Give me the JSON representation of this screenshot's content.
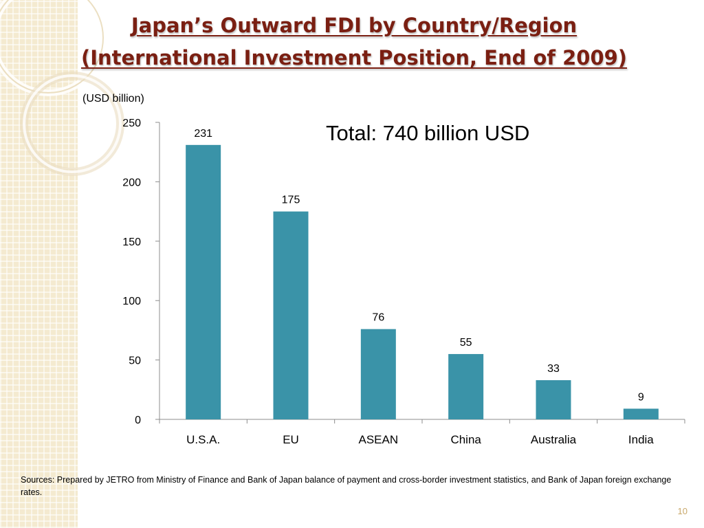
{
  "slide": {
    "title_line1": "Japan’s Outward FDI by Country/Region",
    "title_line2": "(International Investment Position, End of 2009)",
    "unit_label": "(USD billion)",
    "total_annotation": "Total: 740 billion USD",
    "sources": "Sources: Prepared by JETRO from Ministry of Finance and Bank of Japan balance of payment and cross-border investment statistics, and Bank of Japan foreign exchange rates.",
    "page_number": "10"
  },
  "colors": {
    "bar": "#3a93a8",
    "title": "#7a1f12",
    "axis": "#8c8c8c"
  },
  "chart_data": {
    "type": "bar",
    "categories": [
      "U.S.A.",
      "EU",
      "ASEAN",
      "China",
      "Australia",
      "India"
    ],
    "values": [
      231,
      175,
      76,
      55,
      33,
      9
    ],
    "data_labels": [
      "231",
      "175",
      "76",
      "55",
      "33",
      "9"
    ],
    "ylabel": "(USD billion)",
    "ylim": [
      0,
      250
    ],
    "yticks": [
      0,
      50,
      100,
      150,
      200,
      250
    ],
    "grid": false,
    "legend": "none"
  }
}
